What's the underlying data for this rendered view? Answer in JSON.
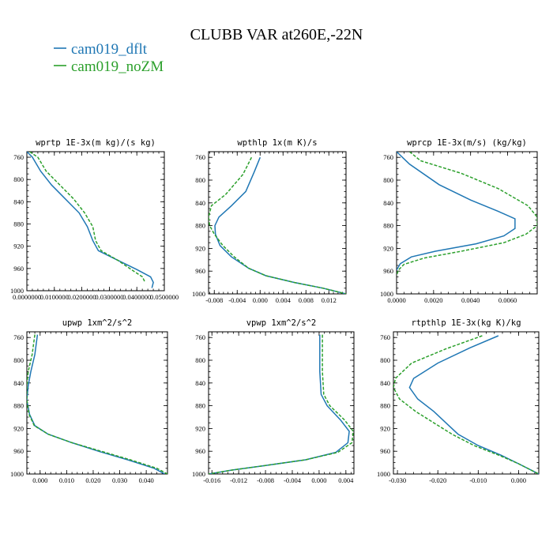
{
  "figure": {
    "title": "CLUBB VAR at260E,-22N",
    "legend": [
      {
        "label": "cam019_dflt",
        "color": "#1f77b4"
      },
      {
        "label": "cam019_noZM",
        "color": "#2ca02c"
      }
    ]
  },
  "chart_data": [
    {
      "type": "line",
      "title": "wprtp  1E-3x(m kg)/(s kg)",
      "xlim": [
        0.0,
        0.05
      ],
      "ylim": [
        1000,
        750
      ],
      "yticks": [
        1000,
        960,
        920,
        880,
        840,
        800,
        760
      ],
      "xticks": [
        0.0,
        0.01,
        0.02,
        0.03,
        0.04,
        0.05
      ],
      "xticklabels": [
        "0.0000000",
        "0.0100000",
        "0.0200000",
        "0.0300000",
        "0.0400000",
        "0.0500000"
      ],
      "series": [
        {
          "name": "cam019_dflt",
          "color": "#1f77b4",
          "dash": "",
          "x": [
            0.0,
            0.002,
            0.005,
            0.009,
            0.014,
            0.019,
            0.022,
            0.024,
            0.026,
            0.033,
            0.04,
            0.045,
            0.046,
            0.0455
          ],
          "y": [
            750,
            760,
            785,
            810,
            835,
            860,
            885,
            910,
            928,
            945,
            962,
            975,
            985,
            995
          ]
        },
        {
          "name": "cam019_noZM",
          "color": "#2ca02c",
          "dash": "4,2",
          "x": [
            0.001,
            0.004,
            0.007,
            0.012,
            0.017,
            0.021,
            0.024,
            0.025,
            0.027,
            0.033,
            0.038,
            0.042,
            0.043
          ],
          "y": [
            750,
            760,
            785,
            810,
            835,
            860,
            885,
            910,
            928,
            945,
            962,
            975,
            985
          ]
        }
      ]
    },
    {
      "type": "line",
      "title": "wpthlp  1x(m K)/s",
      "xlim": [
        -0.009,
        0.015
      ],
      "ylim": [
        1000,
        750
      ],
      "yticks": [
        1000,
        960,
        920,
        880,
        840,
        800,
        760
      ],
      "xticks": [
        -0.008,
        -0.004,
        0.0,
        0.004,
        0.008,
        0.012
      ],
      "xticklabels": [
        "-0.008",
        "-0.004",
        "0.000",
        "0.004",
        "0.008",
        "0.012"
      ],
      "series": [
        {
          "name": "cam019_dflt",
          "color": "#1f77b4",
          "dash": "",
          "x": [
            0.0,
            -0.001,
            -0.0025,
            -0.005,
            -0.0072,
            -0.0079,
            -0.0078,
            -0.007,
            -0.005,
            -0.002,
            0.001,
            0.006,
            0.011,
            0.015
          ],
          "y": [
            760,
            785,
            820,
            845,
            865,
            880,
            895,
            915,
            935,
            955,
            968,
            980,
            990,
            1000
          ]
        },
        {
          "name": "cam019_noZM",
          "color": "#2ca02c",
          "dash": "4,2",
          "x": [
            -0.0015,
            -0.003,
            -0.006,
            -0.0085,
            -0.009,
            -0.0088,
            -0.008,
            -0.0065,
            -0.0045,
            -0.002,
            0.001,
            0.006,
            0.011,
            0.015
          ],
          "y": [
            760,
            790,
            825,
            845,
            865,
            880,
            895,
            915,
            935,
            955,
            968,
            980,
            990,
            1000
          ]
        }
      ]
    },
    {
      "type": "line",
      "title": "wprcp  1E-3x(m/s) (kg/kg)",
      "xlim": [
        0.0,
        0.0076
      ],
      "ylim": [
        1000,
        750
      ],
      "yticks": [
        1000,
        960,
        920,
        880,
        840,
        800,
        760
      ],
      "xticks": [
        0.0,
        0.002,
        0.004,
        0.006
      ],
      "xticklabels": [
        "0.0000",
        "0.0020",
        "0.0040",
        "0.0060"
      ],
      "series": [
        {
          "name": "cam019_dflt",
          "color": "#1f77b4",
          "dash": "",
          "x": [
            0.0,
            0.0007,
            0.0023,
            0.004,
            0.0055,
            0.0064,
            0.0064,
            0.0058,
            0.0043,
            0.0021,
            0.0008,
            0.0002,
            0.0
          ],
          "y": [
            750,
            772,
            808,
            835,
            855,
            868,
            885,
            898,
            912,
            925,
            935,
            947,
            958
          ]
        },
        {
          "name": "cam019_noZM",
          "color": "#2ca02c",
          "dash": "4,2",
          "x": [
            0.0007,
            0.0013,
            0.0035,
            0.0055,
            0.0071,
            0.0076,
            0.0076,
            0.007,
            0.0058,
            0.0035,
            0.0015,
            0.0004,
            0.0001,
            0.0
          ],
          "y": [
            750,
            766,
            788,
            815,
            845,
            865,
            880,
            895,
            910,
            925,
            937,
            948,
            958,
            968
          ]
        }
      ]
    },
    {
      "type": "line",
      "title": "upwp  1xm^2/s^2",
      "xlim": [
        -0.005,
        0.048
      ],
      "ylim": [
        1000,
        750
      ],
      "yticks": [
        1000,
        960,
        920,
        880,
        840,
        800,
        760
      ],
      "xticks": [
        0.0,
        0.01,
        0.02,
        0.03,
        0.04
      ],
      "xticklabels": [
        "0.000",
        "0.010",
        "0.020",
        "0.030",
        "0.040"
      ],
      "series": [
        {
          "name": "cam019_dflt",
          "color": "#1f77b4",
          "dash": "",
          "x": [
            -0.001,
            -0.002,
            -0.0035,
            -0.0045,
            -0.005,
            -0.004,
            -0.002,
            0.003,
            0.012,
            0.022,
            0.033,
            0.043,
            0.047
          ],
          "y": [
            755,
            790,
            820,
            845,
            870,
            895,
            915,
            930,
            945,
            960,
            975,
            990,
            1000
          ]
        },
        {
          "name": "cam019_noZM",
          "color": "#2ca02c",
          "dash": "4,2",
          "x": [
            -0.002,
            -0.003,
            -0.0045,
            -0.005,
            -0.005,
            -0.0042,
            -0.0022,
            0.003,
            0.012,
            0.023,
            0.034,
            0.044,
            0.048
          ],
          "y": [
            755,
            790,
            820,
            845,
            870,
            895,
            915,
            930,
            945,
            960,
            975,
            990,
            1000
          ]
        }
      ]
    },
    {
      "type": "line",
      "title": "vpwp  1xm^2/s^2",
      "xlim": [
        -0.0165,
        0.0052
      ],
      "ylim": [
        1000,
        750
      ],
      "yticks": [
        1000,
        960,
        920,
        880,
        840,
        800,
        760
      ],
      "xticks": [
        -0.016,
        -0.012,
        -0.008,
        -0.004,
        0.0,
        0.004
      ],
      "xticklabels": [
        "-0.016",
        "-0.012",
        "-0.008",
        "-0.004",
        "0.000",
        "0.004"
      ],
      "series": [
        {
          "name": "cam019_dflt",
          "color": "#1f77b4",
          "dash": "",
          "x": [
            0.0001,
            0.0001,
            0.0003,
            0.0012,
            0.0032,
            0.0045,
            0.0043,
            0.0025,
            -0.002,
            -0.008,
            -0.013,
            -0.0165
          ],
          "y": [
            755,
            820,
            860,
            880,
            905,
            925,
            945,
            962,
            975,
            985,
            993,
            1000
          ]
        },
        {
          "name": "cam019_noZM",
          "color": "#2ca02c",
          "dash": "4,2",
          "x": [
            0.0005,
            0.0005,
            0.0007,
            0.0016,
            0.0038,
            0.0051,
            0.0049,
            0.0028,
            -0.002,
            -0.008,
            -0.013,
            -0.0165
          ],
          "y": [
            755,
            820,
            860,
            880,
            905,
            925,
            945,
            962,
            975,
            985,
            993,
            1000
          ]
        }
      ]
    },
    {
      "type": "line",
      "title": "rtpthlp  1E-3x(kg K)/kg",
      "xlim": [
        -0.031,
        0.005
      ],
      "ylim": [
        1000,
        750
      ],
      "yticks": [
        1000,
        960,
        920,
        880,
        840,
        800,
        760
      ],
      "xticks": [
        -0.03,
        -0.02,
        -0.01,
        0.0
      ],
      "xticklabels": [
        "-0.030",
        "-0.020",
        "-0.010",
        "0.000"
      ],
      "series": [
        {
          "name": "cam019_dflt",
          "color": "#1f77b4",
          "dash": "",
          "x": [
            -0.005,
            -0.012,
            -0.02,
            -0.026,
            -0.027,
            -0.025,
            -0.021,
            -0.018,
            -0.015,
            -0.01,
            -0.004,
            0.0,
            0.005
          ],
          "y": [
            757,
            778,
            805,
            832,
            848,
            868,
            890,
            910,
            930,
            950,
            968,
            982,
            1000
          ]
        },
        {
          "name": "cam019_noZM",
          "color": "#2ca02c",
          "dash": "4,2",
          "x": [
            -0.009,
            -0.018,
            -0.0265,
            -0.0305,
            -0.031,
            -0.0295,
            -0.0255,
            -0.021,
            -0.0165,
            -0.011,
            -0.0045,
            0.0,
            0.005
          ],
          "y": [
            757,
            780,
            805,
            832,
            848,
            868,
            890,
            910,
            930,
            950,
            968,
            982,
            1000
          ]
        }
      ]
    }
  ]
}
